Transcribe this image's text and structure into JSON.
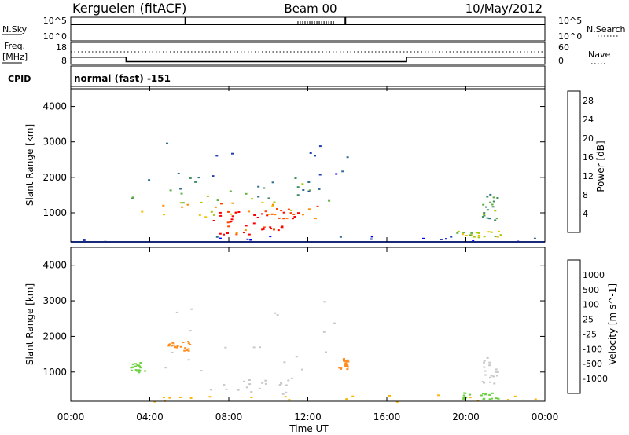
{
  "header": {
    "station": "Kerguelen (fitACF)",
    "beam": "Beam 00",
    "date": "10/May/2012"
  },
  "nsky_panel": {
    "left_label": "N.Sky",
    "left_ticks": [
      "10^5",
      "10^0"
    ],
    "right_label": "N.Search",
    "right_ticks": [
      "10^5",
      "10^0"
    ]
  },
  "freq_panel": {
    "left_label_1": "Freq.",
    "left_label_2": "[MHz]",
    "left_ticks": [
      "18",
      "8"
    ],
    "right_label": "Nave",
    "right_ticks": [
      "60",
      "0"
    ]
  },
  "cpid": {
    "label": "CPID",
    "segments": [
      {
        "start_hour": 0,
        "text": "normal (fast) -151"
      }
    ]
  },
  "xaxis": {
    "ticks": [
      "00:00",
      "04:00",
      "08:00",
      "12:00",
      "16:00",
      "20:00",
      "00:00"
    ],
    "label": "Time UT"
  },
  "chart_data": [
    {
      "type": "line",
      "name": "nsky-nsearch",
      "x_range": [
        0,
        24
      ],
      "x_unit": "hours UT",
      "log_scale": true,
      "spikes_hours": [
        5.8,
        13.9
      ],
      "nsearch_cluster_hours": [
        [
          11.5,
          13.3
        ]
      ]
    },
    {
      "type": "line",
      "name": "frequency-nave",
      "x_range": [
        0,
        24
      ],
      "x_unit": "hours UT",
      "frequency_mhz": [
        {
          "start_hour": 0,
          "end_hour": 2.8,
          "value": 12.2
        },
        {
          "start_hour": 2.8,
          "end_hour": 17.0,
          "value": 9.6
        },
        {
          "start_hour": 17.0,
          "end_hour": 24,
          "value": 12.2
        }
      ]
    },
    {
      "type": "heatmap",
      "name": "power",
      "xlabel": "Time UT",
      "ylabel": "Slant Range [km]",
      "xlim": [
        0,
        24
      ],
      "ylim": [
        180,
        4500
      ],
      "y_ticks": [
        1000,
        2000,
        3000,
        4000
      ],
      "colorbar": {
        "label": "Power [dB]",
        "ticks": [
          4,
          8,
          12,
          16,
          20,
          24,
          28
        ],
        "range": [
          0,
          30
        ],
        "colors": [
          "#0000ff",
          "#1f3fb2",
          "#2f6f8f",
          "#3f8f5f",
          "#5fb03f",
          "#a8c800",
          "#f2c200",
          "#ff8c00",
          "#ff4500",
          "#ff0000"
        ]
      },
      "regions": [
        {
          "t0": 2.9,
          "t1": 14.0,
          "r0": 1300,
          "r1": 3200,
          "level": 0.2
        },
        {
          "t0": 3.0,
          "t1": 13.5,
          "r0": 1200,
          "r1": 2000,
          "level": 0.4
        },
        {
          "t0": 3.5,
          "t1": 13.0,
          "r0": 900,
          "r1": 1500,
          "level": 0.6
        },
        {
          "t0": 5.5,
          "t1": 12.5,
          "r0": 850,
          "r1": 1300,
          "level": 0.82
        },
        {
          "t0": 7.0,
          "t1": 11.5,
          "r0": 700,
          "r1": 1100,
          "level": 0.95
        },
        {
          "t0": 7.5,
          "t1": 10.7,
          "r0": 400,
          "r1": 700,
          "level": 0.9
        },
        {
          "t0": 20.8,
          "t1": 21.6,
          "r0": 800,
          "r1": 1600,
          "level": 0.4
        },
        {
          "t0": 19.5,
          "t1": 21.8,
          "r0": 300,
          "r1": 500,
          "level": 0.55
        },
        {
          "t0": 0.0,
          "t1": 24.0,
          "r0": 180,
          "r1": 380,
          "level": 0.15
        }
      ]
    },
    {
      "type": "heatmap",
      "name": "velocity",
      "xlabel": "Time UT",
      "ylabel": "Slant Range [km]",
      "xlim": [
        0,
        24
      ],
      "ylim": [
        180,
        4500
      ],
      "y_ticks": [
        1000,
        2000,
        3000,
        4000
      ],
      "colorbar": {
        "label": "Velocity [m s^-1]",
        "ticks": [
          "1000",
          "500",
          "100",
          "25",
          "-25",
          "-100",
          "-500",
          "-1000"
        ],
        "colors": [
          "#1e3ccc",
          "#3a8a8a",
          "#3c9a3c",
          "#6ad03c",
          "#c8c8c8",
          "#ffb400",
          "#ff8c1e",
          "#ff5a1e",
          "#ff0000"
        ]
      },
      "regions": [
        {
          "t0": 2.9,
          "t1": 14.0,
          "r0": 800,
          "r1": 3000,
          "color": "#c8c8c8"
        },
        {
          "t0": 7.0,
          "t1": 11.0,
          "r0": 400,
          "r1": 800,
          "color": "#c8c8c8"
        },
        {
          "t0": 4.8,
          "t1": 6.0,
          "r0": 1600,
          "r1": 1900,
          "color": "#ff8c1e"
        },
        {
          "t0": 13.5,
          "t1": 14.0,
          "r0": 1100,
          "r1": 1400,
          "color": "#ff8c1e"
        },
        {
          "t0": 3.0,
          "t1": 3.8,
          "r0": 1000,
          "r1": 1300,
          "color": "#6ad03c"
        },
        {
          "t0": 19.8,
          "t1": 21.8,
          "r0": 250,
          "r1": 450,
          "color": "#6ad03c"
        },
        {
          "t0": 20.8,
          "t1": 21.6,
          "r0": 700,
          "r1": 1500,
          "color": "#c8c8c8"
        },
        {
          "t0": 0.0,
          "t1": 24.0,
          "r0": 180,
          "r1": 380,
          "color": "#ffb400"
        }
      ]
    }
  ]
}
